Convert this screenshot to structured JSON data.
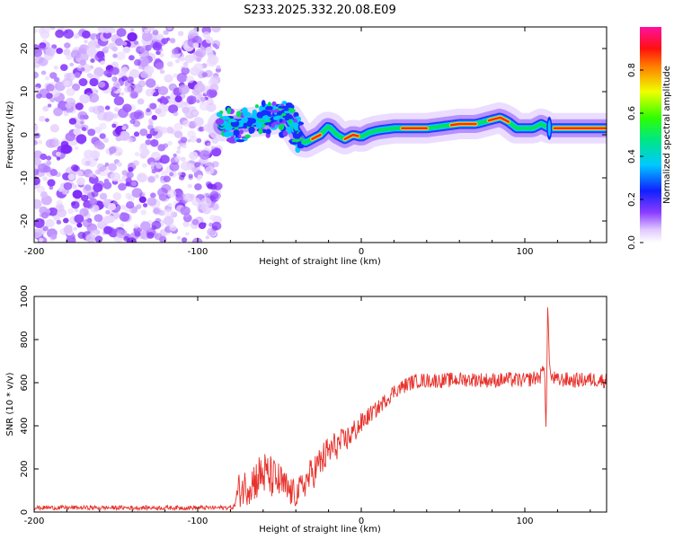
{
  "chart_data": [
    {
      "type": "heatmap",
      "title": "S233.2025.332.20.08.E09",
      "xlabel": "Height of straight line (km)",
      "ylabel": "Frequency (Hz)",
      "xlim": [
        -200,
        150
      ],
      "ylim": [
        -25,
        25
      ],
      "x_ticks": [
        "-200",
        "-100",
        "0",
        "100"
      ],
      "y_ticks": [
        "-20",
        "-10",
        "0",
        "10",
        "20"
      ],
      "colorbar": {
        "label": "Normalized spectral amplitude",
        "range": [
          0,
          1
        ],
        "ticks": [
          "0.0",
          "0.2",
          "0.4",
          "0.6",
          "0.8"
        ]
      },
      "ridge": {
        "description_points_height_km": [
          -85,
          -75,
          -65,
          -55,
          -45,
          -40,
          -35,
          -30,
          -25,
          -20,
          -15,
          -10,
          -5,
          0,
          5,
          10,
          20,
          30,
          40,
          50,
          60,
          70,
          80,
          85,
          90,
          95,
          100,
          105,
          110,
          115,
          120,
          130,
          140,
          150
        ],
        "frequency_hz": [
          2,
          2.5,
          3,
          3.5,
          4,
          1,
          -2,
          -1,
          0,
          2,
          0,
          -1,
          0,
          -0.5,
          0.5,
          1,
          1.5,
          1.5,
          1.5,
          2,
          2.5,
          2.5,
          3.5,
          4,
          3,
          1.5,
          1.5,
          1.5,
          2.5,
          1.5,
          1.5,
          1.5,
          1.5,
          1.5
        ]
      },
      "noise_region_km": [
        -200,
        -87
      ]
    },
    {
      "type": "line",
      "xlabel": "Height of straight line (km)",
      "ylabel": "SNR (10 * v/v)",
      "xlim": [
        -200,
        150
      ],
      "ylim": [
        0,
        1000
      ],
      "x_ticks": [
        "-200",
        "-100",
        "0",
        "100"
      ],
      "y_ticks": [
        "0",
        "200",
        "400",
        "600",
        "800",
        "1000"
      ],
      "color": "#e8322c",
      "series": [
        {
          "name": "SNR",
          "x": [
            -200,
            -180,
            -160,
            -140,
            -120,
            -100,
            -85,
            -78,
            -75,
            -70,
            -65,
            -60,
            -55,
            -50,
            -45,
            -40,
            -35,
            -30,
            -25,
            -20,
            -15,
            -10,
            -5,
            0,
            5,
            10,
            15,
            20,
            25,
            30,
            35,
            40,
            50,
            60,
            70,
            80,
            90,
            100,
            105,
            110,
            112,
            113,
            114,
            115,
            116,
            118,
            120,
            125,
            130,
            140,
            150
          ],
          "y": [
            20,
            20,
            20,
            20,
            20,
            20,
            20,
            22,
            100,
            120,
            150,
            180,
            160,
            140,
            100,
            80,
            130,
            180,
            230,
            280,
            310,
            330,
            370,
            410,
            450,
            480,
            520,
            560,
            580,
            600,
            610,
            610,
            610,
            615,
            615,
            610,
            615,
            610,
            620,
            630,
            700,
            360,
            980,
            700,
            620,
            620,
            610,
            615,
            610,
            615,
            610
          ],
          "noise_amplitude": [
            10,
            10,
            10,
            10,
            10,
            10,
            10,
            10,
            80,
            90,
            100,
            110,
            100,
            90,
            80,
            60,
            70,
            80,
            80,
            80,
            70,
            60,
            60,
            50,
            40,
            35,
            35,
            35,
            35,
            35,
            35,
            35,
            35,
            35,
            35,
            35,
            35,
            35,
            35,
            35,
            35,
            0,
            0,
            0,
            35,
            35,
            35,
            35,
            35,
            35,
            35
          ]
        }
      ]
    }
  ]
}
